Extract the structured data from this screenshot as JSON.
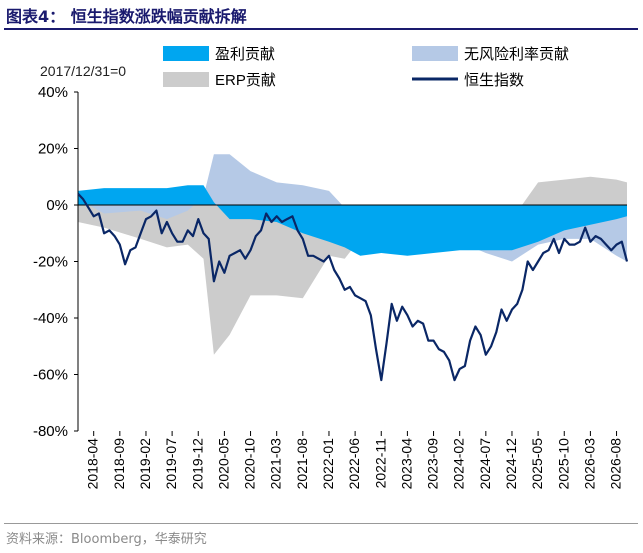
{
  "figure": {
    "title": "图表4：  恒生指数涨跌幅贡献拆解",
    "source": "资料来源：Bloomberg，华泰研究"
  },
  "chart_data": {
    "type": "area",
    "annotation": "2017/12/31=0",
    "x_tick_labels": [
      "2018-04",
      "2018-09",
      "2019-02",
      "2019-07",
      "2019-12",
      "2020-05",
      "2020-10",
      "2021-03",
      "2021-08",
      "2022-01",
      "2022-06",
      "2022-11",
      "2023-04",
      "2023-09",
      "2024-02",
      "2024-07",
      "2024-12",
      "2025-05",
      "2025-10",
      "2026-03",
      "2026-08"
    ],
    "y_tick_labels": [
      "40%",
      "20%",
      "0%",
      "-20%",
      "-40%",
      "-60%",
      "-80%"
    ],
    "ylim": [
      -80,
      40
    ],
    "ylabel_unit": "%",
    "x_start": "2018-01",
    "x_end": "2026-10",
    "legend_position": "top",
    "grid": false,
    "series": [
      {
        "name": "盈利贡献",
        "kind": "area",
        "color": "#00a6f0",
        "x": [
          "2018-01",
          "2018-06",
          "2019-01",
          "2019-06",
          "2019-10",
          "2020-01",
          "2020-03",
          "2020-06",
          "2020-10",
          "2021-03",
          "2021-08",
          "2022-01",
          "2022-04",
          "2022-07",
          "2022-11",
          "2023-04",
          "2023-09",
          "2024-02",
          "2024-07",
          "2024-12",
          "2025-05",
          "2025-10",
          "2026-03",
          "2026-08",
          "2026-10"
        ],
        "values": [
          5,
          6,
          6,
          6,
          7,
          7,
          1,
          -5,
          -5,
          -6,
          -10,
          -13,
          -15,
          -18,
          -17,
          -18,
          -17,
          -16,
          -16,
          -16,
          -13,
          -9,
          -7,
          -5,
          -4
        ]
      },
      {
        "name": "无风险利率贡献",
        "kind": "area",
        "color": "#b5c9e6",
        "x": [
          "2018-01",
          "2018-06",
          "2019-01",
          "2019-06",
          "2019-10",
          "2020-01",
          "2020-03",
          "2020-06",
          "2020-10",
          "2021-03",
          "2021-08",
          "2022-01",
          "2022-04",
          "2022-07",
          "2022-11",
          "2023-04",
          "2023-09",
          "2024-02",
          "2024-07",
          "2024-12",
          "2025-05",
          "2025-10",
          "2026-03",
          "2026-08",
          "2026-10"
        ],
        "values": [
          2,
          -3,
          -2,
          -5,
          -2,
          3,
          18,
          18,
          12,
          8,
          7,
          5,
          -1,
          -12,
          -15,
          -12,
          -12,
          -13,
          -17,
          -20,
          -14,
          -12,
          -12,
          -18,
          -20
        ]
      },
      {
        "name": "ERP贡献",
        "kind": "area",
        "color": "#cccccc",
        "x": [
          "2018-01",
          "2018-06",
          "2019-01",
          "2019-06",
          "2019-10",
          "2020-01",
          "2020-03",
          "2020-06",
          "2020-10",
          "2021-03",
          "2021-08",
          "2022-01",
          "2022-04",
          "2022-07",
          "2022-11",
          "2023-04",
          "2023-09",
          "2024-02",
          "2024-07",
          "2024-12",
          "2025-05",
          "2025-10",
          "2026-03",
          "2026-08",
          "2026-10"
        ],
        "values": [
          -6,
          -8,
          -12,
          -15,
          -14,
          -19,
          -53,
          -46,
          -32,
          -32,
          -33,
          -18,
          -19,
          -12,
          -10,
          -6,
          -10,
          -14,
          -4,
          -5,
          8,
          9,
          10,
          9,
          8
        ]
      },
      {
        "name": "恒生指数",
        "kind": "line",
        "color": "#0a2766",
        "x": [
          "2018-01",
          "2018-02",
          "2018-03",
          "2018-04",
          "2018-05",
          "2018-06",
          "2018-07",
          "2018-08",
          "2018-09",
          "2018-10",
          "2018-11",
          "2018-12",
          "2019-01",
          "2019-02",
          "2019-03",
          "2019-04",
          "2019-05",
          "2019-06",
          "2019-07",
          "2019-08",
          "2019-09",
          "2019-10",
          "2019-11",
          "2019-12",
          "2020-01",
          "2020-02",
          "2020-03",
          "2020-04",
          "2020-05",
          "2020-06",
          "2020-07",
          "2020-08",
          "2020-09",
          "2020-10",
          "2020-11",
          "2020-12",
          "2021-01",
          "2021-02",
          "2021-03",
          "2021-04",
          "2021-05",
          "2021-06",
          "2021-07",
          "2021-08",
          "2021-09",
          "2021-10",
          "2021-11",
          "2021-12",
          "2022-01",
          "2022-02",
          "2022-03",
          "2022-04",
          "2022-05",
          "2022-06",
          "2022-07",
          "2022-08",
          "2022-09",
          "2022-10",
          "2022-11",
          "2022-12",
          "2023-01",
          "2023-02",
          "2023-03",
          "2023-04",
          "2023-05",
          "2023-06",
          "2023-07",
          "2023-08",
          "2023-09",
          "2023-10",
          "2023-11",
          "2023-12",
          "2024-01",
          "2024-02",
          "2024-03",
          "2024-04",
          "2024-05",
          "2024-06",
          "2024-07",
          "2024-08",
          "2024-09",
          "2024-10",
          "2024-11",
          "2024-12",
          "2025-01",
          "2025-02",
          "2025-03",
          "2025-04",
          "2025-05",
          "2025-06",
          "2025-07",
          "2025-08",
          "2025-09",
          "2025-10",
          "2025-11",
          "2025-12",
          "2026-01",
          "2026-02",
          "2026-03",
          "2026-04",
          "2026-05",
          "2026-06",
          "2026-07",
          "2026-08",
          "2026-09",
          "2026-10"
        ],
        "values": [
          4,
          2,
          -1,
          -4,
          -3,
          -10,
          -9,
          -11,
          -14,
          -21,
          -16,
          -15,
          -10,
          -5,
          -4,
          -2,
          -10,
          -6,
          -10,
          -13,
          -13,
          -9,
          -11,
          -5,
          -10,
          -12,
          -27,
          -20,
          -24,
          -18,
          -17,
          -16,
          -19,
          -16,
          -11,
          -9,
          -3,
          -6,
          -4,
          -6,
          -5,
          -4,
          -9,
          -12,
          -18,
          -18,
          -19,
          -20,
          -18,
          -23,
          -26,
          -30,
          -29,
          -32,
          -33,
          -34,
          -39,
          -51,
          -62,
          -49,
          -35,
          -41,
          -36,
          -39,
          -43,
          -41,
          -42,
          -48,
          -48,
          -51,
          -52,
          -55,
          -62,
          -58,
          -57,
          -48,
          -43,
          -46,
          -53,
          -50,
          -45,
          -37,
          -41,
          -37,
          -35,
          -30,
          -20,
          -23,
          -20,
          -17,
          -16,
          -12,
          -17,
          -12,
          -14,
          -14,
          -13,
          -8,
          -13,
          -11,
          -12,
          -14,
          -16,
          -14,
          -13,
          -20
        ]
      }
    ]
  }
}
